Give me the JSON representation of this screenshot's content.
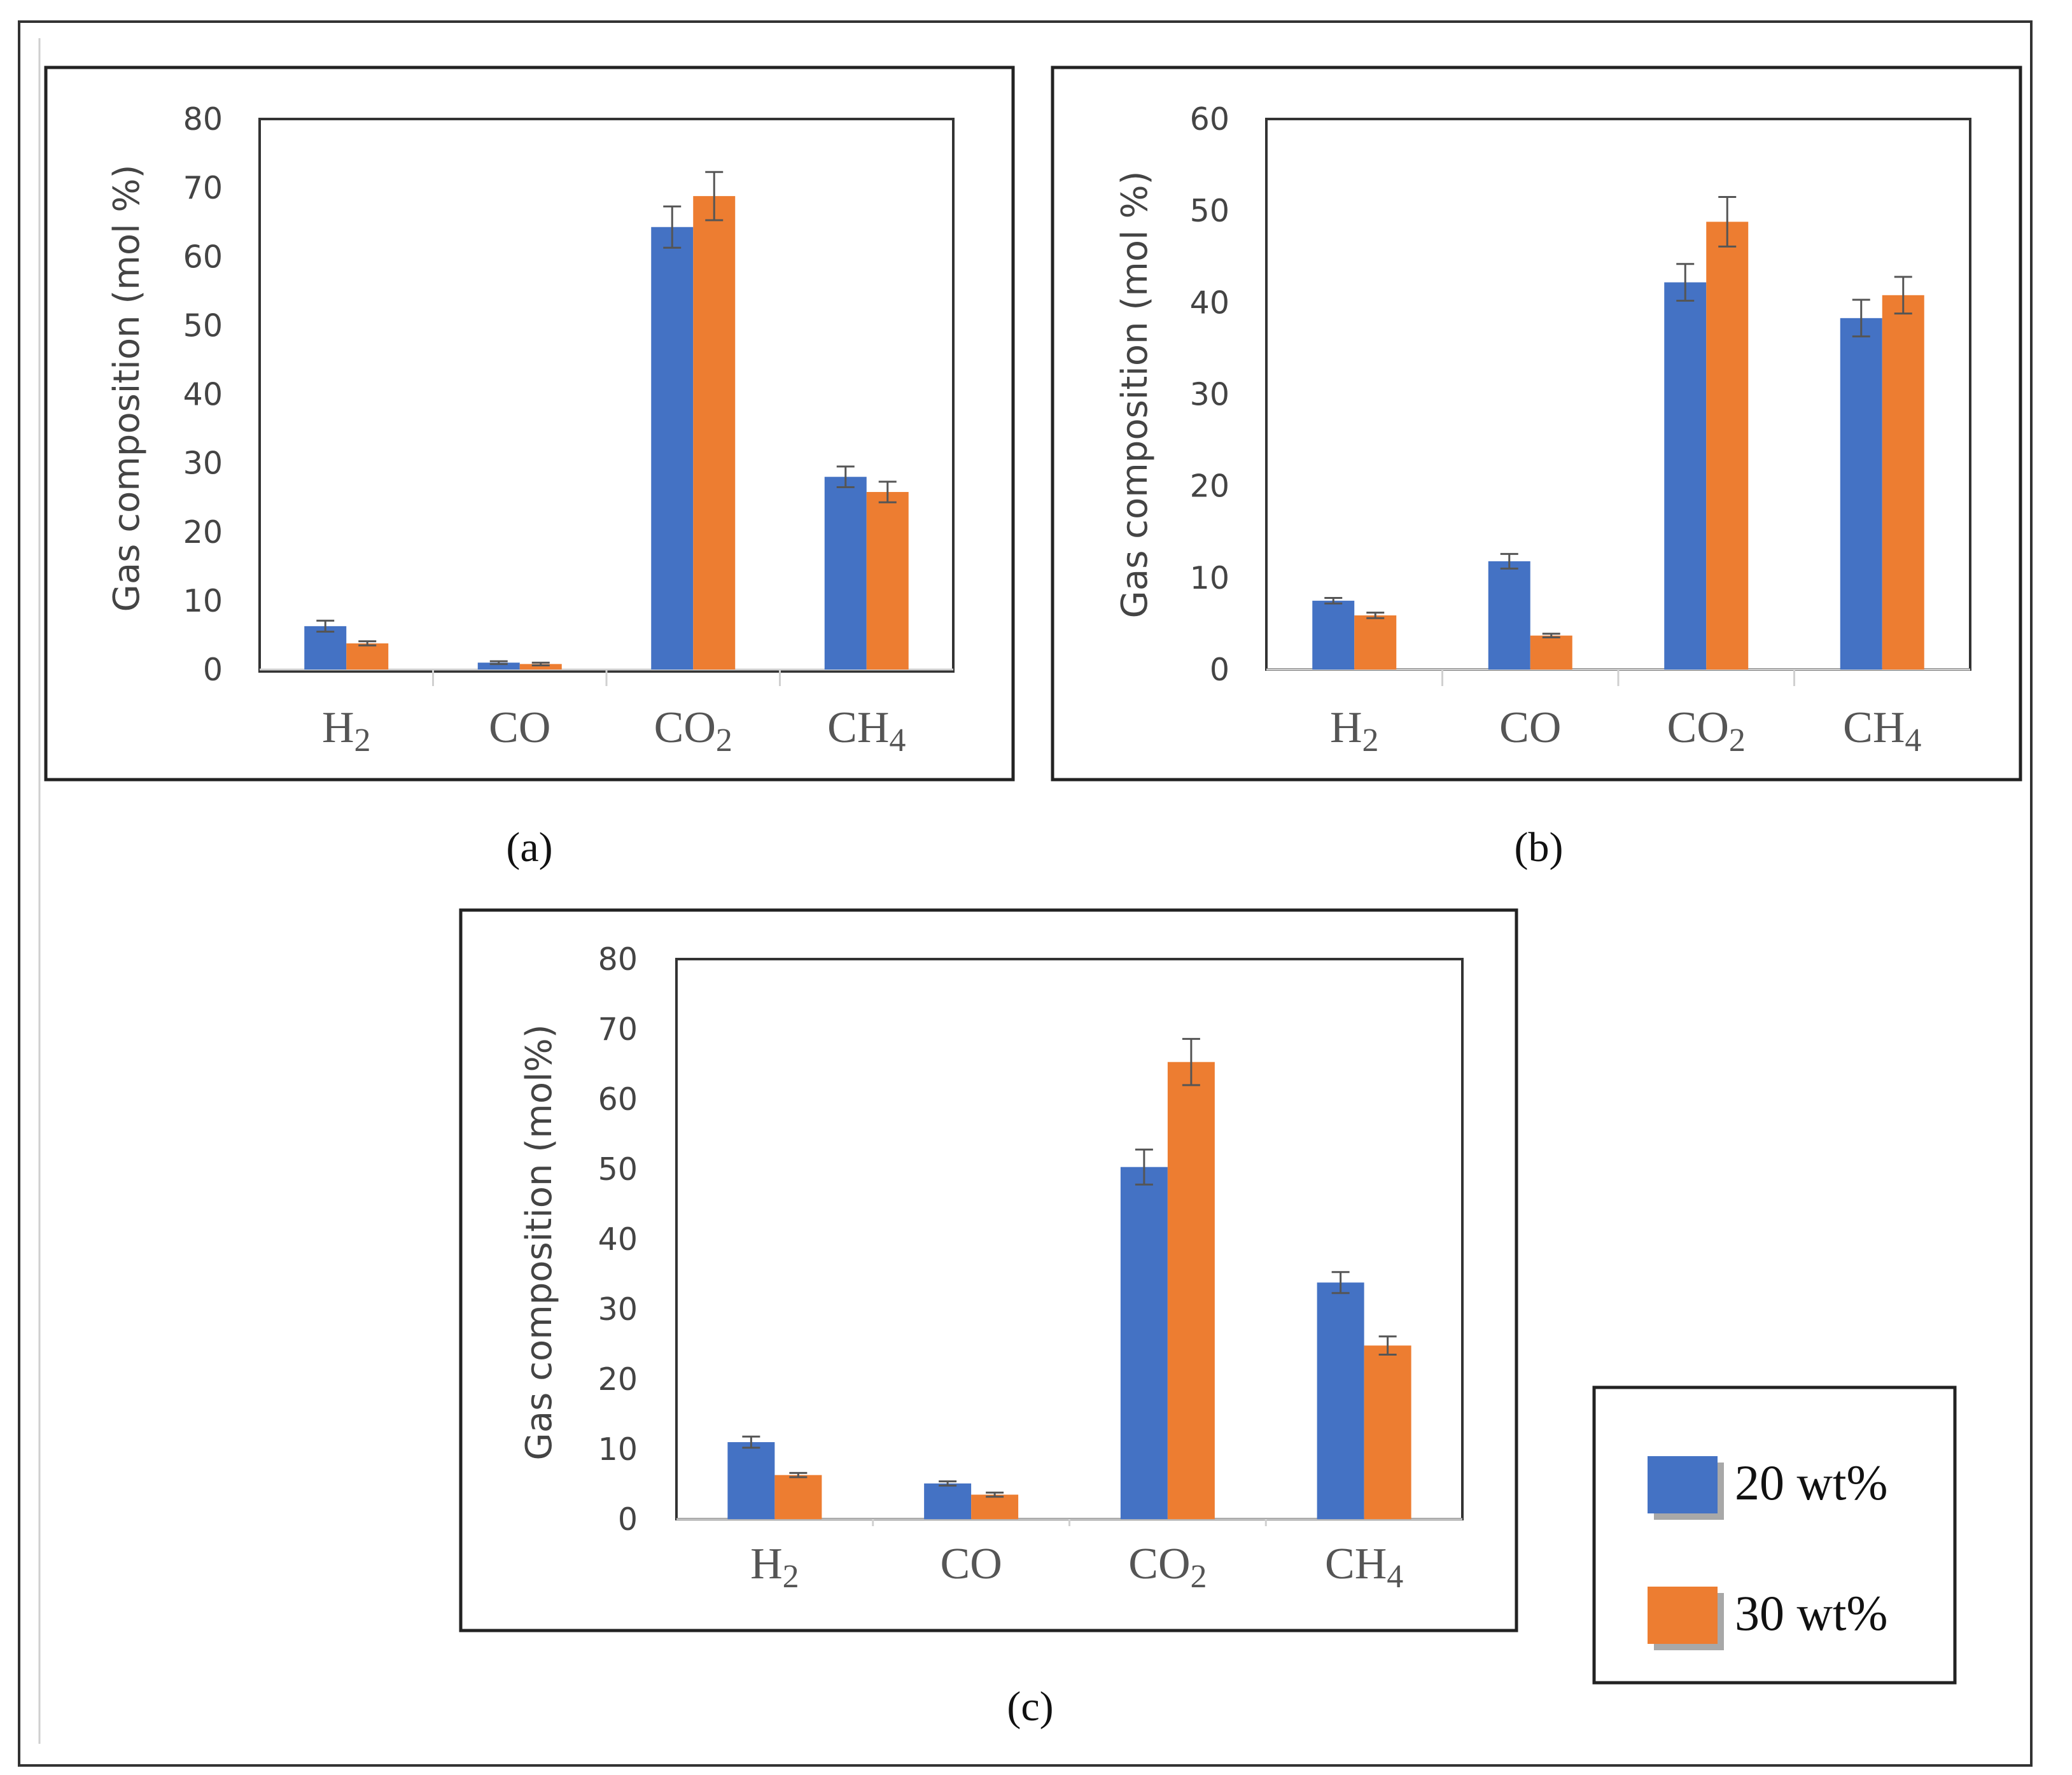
{
  "legend": [
    {
      "label": "20 wt%",
      "color": "#4472C4"
    },
    {
      "label": "30 wt%",
      "color": "#ED7D31"
    }
  ],
  "chart_data": [
    {
      "type": "bar",
      "panel_label": "(a)",
      "ylabel": "Gas composition (mol %)",
      "ylim": [
        0,
        80
      ],
      "yticks": [
        0,
        10,
        20,
        30,
        40,
        50,
        60,
        70,
        80
      ],
      "categories": [
        {
          "base": "H",
          "sub": "2"
        },
        {
          "base": "CO",
          "sub": ""
        },
        {
          "base": "CO",
          "sub": "2"
        },
        {
          "base": "CH",
          "sub": "4"
        }
      ],
      "series": [
        {
          "name": "20 wt%",
          "values": [
            6.3,
            1.0,
            64.3,
            28.0
          ],
          "errors": [
            0.8,
            0.2,
            3.0,
            1.5
          ]
        },
        {
          "name": "30 wt%",
          "values": [
            3.8,
            0.8,
            68.8,
            25.8
          ],
          "errors": [
            0.3,
            0.2,
            3.5,
            1.5
          ]
        }
      ]
    },
    {
      "type": "bar",
      "panel_label": "(b)",
      "ylabel": "Gas composition (mol %)",
      "ylim": [
        0,
        60
      ],
      "yticks": [
        0,
        10,
        20,
        30,
        40,
        50,
        60
      ],
      "categories": [
        {
          "base": "H",
          "sub": "2"
        },
        {
          "base": "CO",
          "sub": ""
        },
        {
          "base": "CO",
          "sub": "2"
        },
        {
          "base": "CH",
          "sub": "4"
        }
      ],
      "series": [
        {
          "name": "20 wt%",
          "values": [
            7.5,
            11.8,
            42.2,
            38.3
          ],
          "errors": [
            0.3,
            0.8,
            2.0,
            2.0
          ]
        },
        {
          "name": "30 wt%",
          "values": [
            5.9,
            3.7,
            48.8,
            40.8
          ],
          "errors": [
            0.3,
            0.2,
            2.7,
            2.0
          ]
        }
      ]
    },
    {
      "type": "bar",
      "panel_label": "(c)",
      "ylabel": "Gas composition (mol%)",
      "ylim": [
        0,
        80
      ],
      "yticks": [
        0,
        10,
        20,
        30,
        40,
        50,
        60,
        70,
        80
      ],
      "categories": [
        {
          "base": "H",
          "sub": "2"
        },
        {
          "base": "CO",
          "sub": ""
        },
        {
          "base": "CO",
          "sub": "2"
        },
        {
          "base": "CH",
          "sub": "4"
        }
      ],
      "series": [
        {
          "name": "20 wt%",
          "values": [
            11.0,
            5.1,
            50.3,
            33.8
          ],
          "errors": [
            0.8,
            0.3,
            2.5,
            1.5
          ]
        },
        {
          "name": "30 wt%",
          "values": [
            6.3,
            3.5,
            65.3,
            24.8
          ],
          "errors": [
            0.3,
            0.3,
            3.3,
            1.3
          ]
        }
      ]
    }
  ]
}
